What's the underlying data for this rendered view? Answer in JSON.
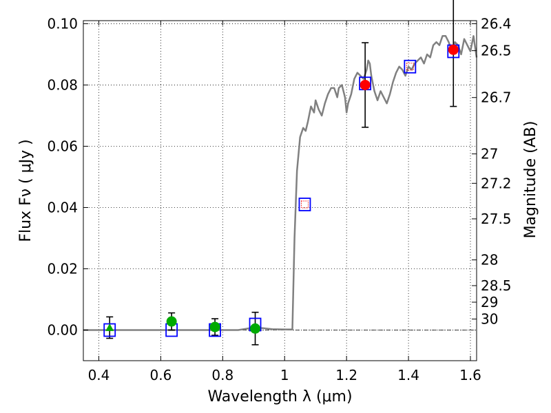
{
  "chart_data": {
    "type": "scatter",
    "xlabel": "Wavelength  λ (μm)",
    "ylabel": "Flux  Fν  ( μJy )",
    "y2label": "Magnitude (AB)",
    "xlim": [
      0.35,
      1.62
    ],
    "ylim": [
      -0.01,
      0.101
    ],
    "x_ticks": [
      0.4,
      0.6,
      0.8,
      1.0,
      1.2,
      1.4,
      1.6
    ],
    "x_tick_labels": [
      "0.4",
      "0.6",
      "0.8",
      "1",
      "1.2",
      "1.4",
      "1.6"
    ],
    "y_ticks": [
      0.0,
      0.02,
      0.04,
      0.06,
      0.08,
      0.1
    ],
    "y_tick_labels": [
      "0.00",
      "0.02",
      "0.04",
      "0.06",
      "0.08",
      "0.10"
    ],
    "y2_ticks": [
      {
        "label": "26.4",
        "flux": 0.1
      },
      {
        "label": "26.5",
        "flux": 0.0912
      },
      {
        "label": "26.7",
        "flux": 0.0759
      },
      {
        "label": "27",
        "flux": 0.0575
      },
      {
        "label": "27.2",
        "flux": 0.0479
      },
      {
        "label": "27.5",
        "flux": 0.0363
      },
      {
        "label": "28",
        "flux": 0.0229
      },
      {
        "label": "28.5",
        "flux": 0.0145
      },
      {
        "label": "29",
        "flux": 0.0091
      },
      {
        "label": "30",
        "flux": 0.0036
      }
    ],
    "grid": true,
    "zero_line": true,
    "colors": {
      "model": "#808080",
      "model_photometry": "#0000ff",
      "detection": "#ff0000",
      "non_detection": "#00aa00",
      "upper_limit_marker": "#ff0000",
      "error_bar": "#000000",
      "grid": "#000000"
    },
    "model_spectrum": [
      [
        0.35,
        0.0
      ],
      [
        0.45,
        0.0
      ],
      [
        0.55,
        0.0
      ],
      [
        0.65,
        0.0
      ],
      [
        0.75,
        0.0
      ],
      [
        0.85,
        0.0
      ],
      [
        0.88,
        0.0005
      ],
      [
        0.9,
        0.0008
      ],
      [
        0.93,
        0.0006
      ],
      [
        0.96,
        0.0003
      ],
      [
        1.0,
        0.0002
      ],
      [
        1.025,
        0.0002
      ],
      [
        1.032,
        0.03
      ],
      [
        1.04,
        0.052
      ],
      [
        1.05,
        0.063
      ],
      [
        1.06,
        0.066
      ],
      [
        1.068,
        0.065
      ],
      [
        1.075,
        0.068
      ],
      [
        1.085,
        0.073
      ],
      [
        1.095,
        0.071
      ],
      [
        1.1,
        0.075
      ],
      [
        1.11,
        0.072
      ],
      [
        1.12,
        0.07
      ],
      [
        1.13,
        0.074
      ],
      [
        1.14,
        0.077
      ],
      [
        1.15,
        0.079
      ],
      [
        1.16,
        0.079
      ],
      [
        1.17,
        0.076
      ],
      [
        1.175,
        0.079
      ],
      [
        1.185,
        0.08
      ],
      [
        1.195,
        0.076
      ],
      [
        1.2,
        0.071
      ],
      [
        1.205,
        0.074
      ],
      [
        1.215,
        0.077
      ],
      [
        1.225,
        0.082
      ],
      [
        1.235,
        0.084
      ],
      [
        1.245,
        0.083
      ],
      [
        1.255,
        0.082
      ],
      [
        1.265,
        0.085
      ],
      [
        1.27,
        0.088
      ],
      [
        1.275,
        0.087
      ],
      [
        1.28,
        0.083
      ],
      [
        1.29,
        0.078
      ],
      [
        1.3,
        0.075
      ],
      [
        1.31,
        0.078
      ],
      [
        1.32,
        0.076
      ],
      [
        1.33,
        0.074
      ],
      [
        1.34,
        0.077
      ],
      [
        1.35,
        0.081
      ],
      [
        1.36,
        0.084
      ],
      [
        1.37,
        0.086
      ],
      [
        1.38,
        0.085
      ],
      [
        1.39,
        0.083
      ],
      [
        1.4,
        0.086
      ],
      [
        1.41,
        0.085
      ],
      [
        1.42,
        0.087
      ],
      [
        1.43,
        0.088
      ],
      [
        1.44,
        0.089
      ],
      [
        1.45,
        0.087
      ],
      [
        1.46,
        0.09
      ],
      [
        1.47,
        0.089
      ],
      [
        1.48,
        0.093
      ],
      [
        1.49,
        0.094
      ],
      [
        1.5,
        0.093
      ],
      [
        1.51,
        0.096
      ],
      [
        1.52,
        0.096
      ],
      [
        1.53,
        0.094
      ],
      [
        1.54,
        0.091
      ],
      [
        1.55,
        0.094
      ],
      [
        1.56,
        0.093
      ],
      [
        1.57,
        0.09
      ],
      [
        1.58,
        0.095
      ],
      [
        1.59,
        0.093
      ],
      [
        1.6,
        0.091
      ],
      [
        1.61,
        0.096
      ],
      [
        1.62,
        0.089
      ]
    ],
    "model_photometry": [
      {
        "x": 0.435,
        "y": 0.0
      },
      {
        "x": 0.635,
        "y": 0.0
      },
      {
        "x": 0.775,
        "y": 0.0
      },
      {
        "x": 0.905,
        "y": 0.0018
      },
      {
        "x": 1.065,
        "y": 0.041
      },
      {
        "x": 1.26,
        "y": 0.0805
      },
      {
        "x": 1.405,
        "y": 0.086
      },
      {
        "x": 1.545,
        "y": 0.091
      }
    ],
    "observed": [
      {
        "x": 0.435,
        "y": 0.0008,
        "err": 0.0035,
        "marker": "triangle",
        "kind": "non_detection"
      },
      {
        "x": 0.635,
        "y": 0.0028,
        "err": 0.0028,
        "marker": "circle",
        "kind": "non_detection"
      },
      {
        "x": 0.775,
        "y": 0.001,
        "err": 0.0027,
        "marker": "circle",
        "kind": "non_detection"
      },
      {
        "x": 0.905,
        "y": 0.0005,
        "err": 0.0053,
        "marker": "circle",
        "kind": "non_detection"
      },
      {
        "x": 1.065,
        "y": 0.041,
        "err": null,
        "marker": "small-square",
        "kind": "no_data"
      },
      {
        "x": 1.26,
        "y": 0.08,
        "err": 0.0138,
        "marker": "circle",
        "kind": "detection"
      },
      {
        "x": 1.405,
        "y": 0.086,
        "err": null,
        "marker": "small-square",
        "kind": "no_data"
      },
      {
        "x": 1.545,
        "y": 0.0915,
        "err": 0.0185,
        "marker": "circle",
        "kind": "detection"
      }
    ]
  }
}
